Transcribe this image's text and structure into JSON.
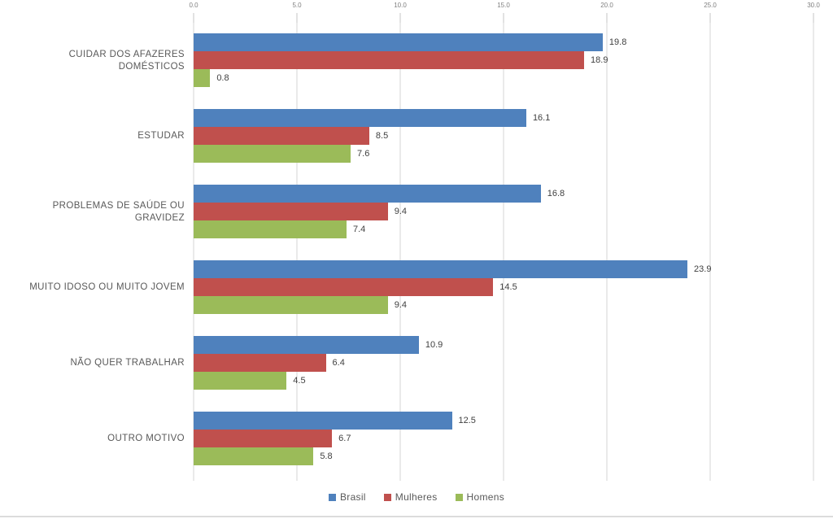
{
  "chart_data": {
    "type": "bar",
    "orientation": "horizontal",
    "title": "",
    "xlabel": "",
    "ylabel": "",
    "xlim": [
      0,
      30
    ],
    "x_ticks": [
      "0.0",
      "5.0",
      "10.0",
      "15.0",
      "20.0",
      "25.0",
      "30.0"
    ],
    "grid": true,
    "legend_position": "bottom",
    "categories": [
      "CUIDAR DOS AFAZERES DOMÉSTICOS",
      "ESTUDAR",
      "PROBLEMAS DE SAÚDE OU GRAVIDEZ",
      "MUITO IDOSO OU MUITO JOVEM",
      "NÃO QUER TRABALHAR",
      "OUTRO MOTIVO"
    ],
    "series": [
      {
        "name": "Brasil",
        "color": "#4F81BD",
        "values": [
          19.8,
          16.1,
          16.8,
          23.9,
          10.9,
          12.5
        ]
      },
      {
        "name": "Mulheres",
        "color": "#C0504D",
        "values": [
          18.9,
          8.5,
          9.4,
          14.5,
          6.4,
          6.7
        ]
      },
      {
        "name": "Homens",
        "color": "#9BBB59",
        "values": [
          0.8,
          7.6,
          7.4,
          9.4,
          4.5,
          5.8
        ]
      }
    ]
  },
  "colors": {
    "gridline": "#D6D6D6",
    "tick_label": "#7F7F7F",
    "category_label": "#595959",
    "value_label": "#404040"
  }
}
